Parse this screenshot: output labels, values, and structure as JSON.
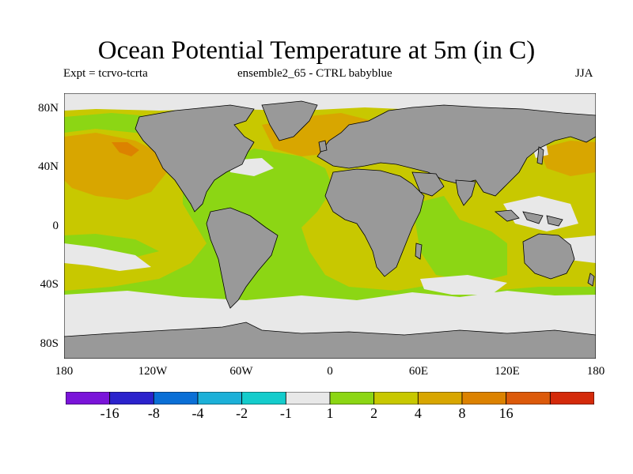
{
  "title": "Ocean Potential Temperature at 5m (in C)",
  "subtitle_left": "Expt = tcrvo-tcrta",
  "subtitle_center": "ensemble2_65 - CTRL babyblue",
  "season": "JJA",
  "lat_labels": [
    "80N",
    "40N",
    "0",
    "40S",
    "80S"
  ],
  "lon_labels": [
    "180",
    "120W",
    "60W",
    "0",
    "60E",
    "120E",
    "180"
  ],
  "colorbar": {
    "colors": [
      "#7a14d9",
      "#2b22cc",
      "#0a6fd6",
      "#1cb0d8",
      "#14cccc",
      "#e8e8e8",
      "#8cd614",
      "#c8c800",
      "#d8a600",
      "#dc8200",
      "#dc5a0a",
      "#d42a0a"
    ],
    "labels": [
      "-16",
      "-8",
      "-4",
      "-2",
      "-1",
      "1",
      "2",
      "4",
      "8",
      "16"
    ]
  },
  "colors": {
    "land": "#999999",
    "ice": "#e8e8e8",
    "coast": "#000000"
  }
}
